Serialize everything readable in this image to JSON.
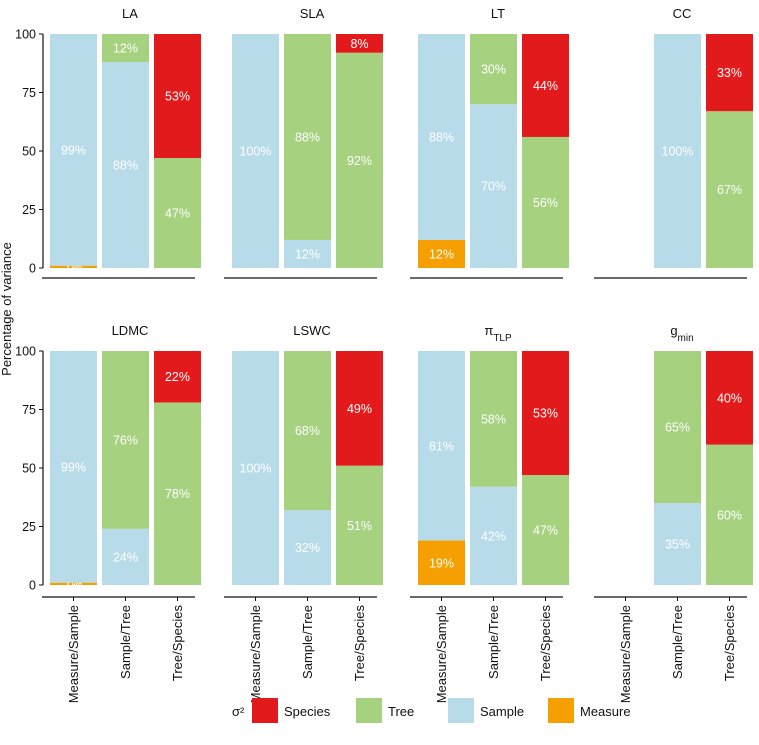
{
  "chart_data": {
    "type": "bar",
    "stacked": true,
    "ylabel": "Percentage of variance",
    "ylim": [
      0,
      100
    ],
    "yticks": [
      0,
      25,
      50,
      75,
      100
    ],
    "categories": [
      "Measure/Sample",
      "Sample/Tree",
      "Tree/Species"
    ],
    "legend": {
      "title": "σ²",
      "position": "bottom",
      "items": [
        {
          "key": "Species",
          "label": "Species"
        },
        {
          "key": "Tree",
          "label": "Tree"
        },
        {
          "key": "Sample",
          "label": "Sample"
        },
        {
          "key": "Measure",
          "label": "Measure"
        }
      ]
    },
    "colors": {
      "Species": "#e31a1c",
      "Tree": "#a6d17f",
      "Sample": "#b8dbe9",
      "Measure": "#f5a000"
    },
    "label_color": "#ffffff",
    "panels": [
      {
        "title": "LA",
        "sub": "",
        "bars": [
          {
            "category": "Measure/Sample",
            "segments": [
              {
                "key": "Measure",
                "value": 1,
                "label": "1%"
              },
              {
                "key": "Sample",
                "value": 99,
                "label": "99%"
              }
            ]
          },
          {
            "category": "Sample/Tree",
            "segments": [
              {
                "key": "Sample",
                "value": 88,
                "label": "88%"
              },
              {
                "key": "Tree",
                "value": 12,
                "label": "12%"
              }
            ]
          },
          {
            "category": "Tree/Species",
            "segments": [
              {
                "key": "Tree",
                "value": 47,
                "label": "47%"
              },
              {
                "key": "Species",
                "value": 53,
                "label": "53%"
              }
            ]
          }
        ]
      },
      {
        "title": "SLA",
        "sub": "",
        "bars": [
          {
            "category": "Measure/Sample",
            "segments": [
              {
                "key": "Sample",
                "value": 100,
                "label": "100%"
              }
            ]
          },
          {
            "category": "Sample/Tree",
            "segments": [
              {
                "key": "Sample",
                "value": 12,
                "label": "12%"
              },
              {
                "key": "Tree",
                "value": 88,
                "label": "88%"
              }
            ]
          },
          {
            "category": "Tree/Species",
            "segments": [
              {
                "key": "Tree",
                "value": 92,
                "label": "92%"
              },
              {
                "key": "Species",
                "value": 8,
                "label": "8%"
              }
            ]
          }
        ]
      },
      {
        "title": "LT",
        "sub": "",
        "bars": [
          {
            "category": "Measure/Sample",
            "segments": [
              {
                "key": "Measure",
                "value": 12,
                "label": "12%"
              },
              {
                "key": "Sample",
                "value": 88,
                "label": "88%"
              }
            ]
          },
          {
            "category": "Sample/Tree",
            "segments": [
              {
                "key": "Sample",
                "value": 70,
                "label": "70%"
              },
              {
                "key": "Tree",
                "value": 30,
                "label": "30%"
              }
            ]
          },
          {
            "category": "Tree/Species",
            "segments": [
              {
                "key": "Tree",
                "value": 56,
                "label": "56%"
              },
              {
                "key": "Species",
                "value": 44,
                "label": "44%"
              }
            ]
          }
        ]
      },
      {
        "title": "CC",
        "sub": "",
        "bars": [
          {
            "category": "Measure/Sample",
            "segments": []
          },
          {
            "category": "Sample/Tree",
            "segments": [
              {
                "key": "Sample",
                "value": 100,
                "label": "100%"
              }
            ]
          },
          {
            "category": "Tree/Species",
            "segments": [
              {
                "key": "Tree",
                "value": 67,
                "label": "67%"
              },
              {
                "key": "Species",
                "value": 33,
                "label": "33%"
              }
            ]
          }
        ]
      },
      {
        "title": "LDMC",
        "sub": "",
        "bars": [
          {
            "category": "Measure/Sample",
            "segments": [
              {
                "key": "Measure",
                "value": 1,
                "label": "1%"
              },
              {
                "key": "Sample",
                "value": 99,
                "label": "99%"
              }
            ]
          },
          {
            "category": "Sample/Tree",
            "segments": [
              {
                "key": "Sample",
                "value": 24,
                "label": "24%"
              },
              {
                "key": "Tree",
                "value": 76,
                "label": "76%"
              }
            ]
          },
          {
            "category": "Tree/Species",
            "segments": [
              {
                "key": "Tree",
                "value": 78,
                "label": "78%"
              },
              {
                "key": "Species",
                "value": 22,
                "label": "22%"
              }
            ]
          }
        ]
      },
      {
        "title": "LSWC",
        "sub": "",
        "bars": [
          {
            "category": "Measure/Sample",
            "segments": [
              {
                "key": "Sample",
                "value": 100,
                "label": "100%"
              }
            ]
          },
          {
            "category": "Sample/Tree",
            "segments": [
              {
                "key": "Sample",
                "value": 32,
                "label": "32%"
              },
              {
                "key": "Tree",
                "value": 68,
                "label": "68%"
              }
            ]
          },
          {
            "category": "Tree/Species",
            "segments": [
              {
                "key": "Tree",
                "value": 51,
                "label": "51%"
              },
              {
                "key": "Species",
                "value": 49,
                "label": "49%"
              }
            ]
          }
        ]
      },
      {
        "title": "π",
        "sub": "TLP",
        "bars": [
          {
            "category": "Measure/Sample",
            "segments": [
              {
                "key": "Measure",
                "value": 19,
                "label": "19%"
              },
              {
                "key": "Sample",
                "value": 81,
                "label": "81%"
              }
            ]
          },
          {
            "category": "Sample/Tree",
            "segments": [
              {
                "key": "Sample",
                "value": 42,
                "label": "42%"
              },
              {
                "key": "Tree",
                "value": 58,
                "label": "58%"
              }
            ]
          },
          {
            "category": "Tree/Species",
            "segments": [
              {
                "key": "Tree",
                "value": 47,
                "label": "47%"
              },
              {
                "key": "Species",
                "value": 53,
                "label": "53%"
              }
            ]
          }
        ]
      },
      {
        "title": "g",
        "sub": "min",
        "bars": [
          {
            "category": "Measure/Sample",
            "segments": []
          },
          {
            "category": "Sample/Tree",
            "segments": [
              {
                "key": "Sample",
                "value": 35,
                "label": "35%"
              },
              {
                "key": "Tree",
                "value": 65,
                "label": "65%"
              }
            ]
          },
          {
            "category": "Tree/Species",
            "segments": [
              {
                "key": "Tree",
                "value": 60,
                "label": "60%"
              },
              {
                "key": "Species",
                "value": 40,
                "label": "40%"
              }
            ]
          }
        ]
      }
    ]
  }
}
